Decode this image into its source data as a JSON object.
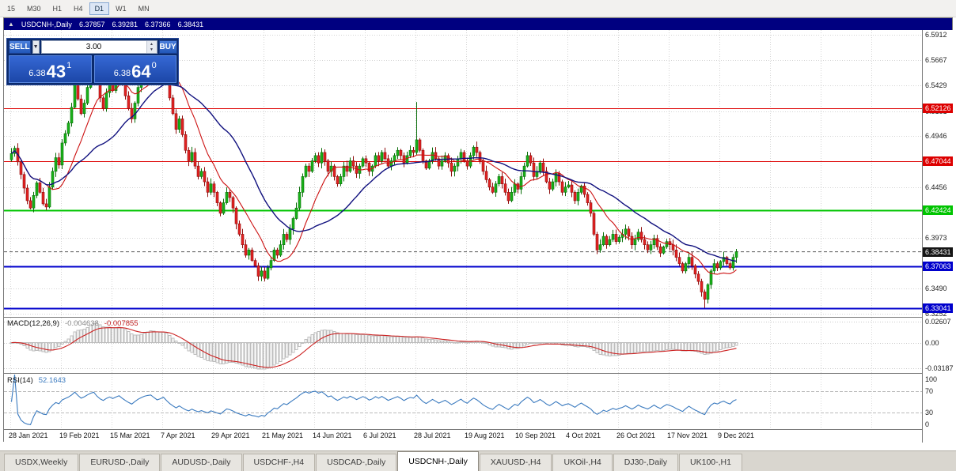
{
  "toolbar": {
    "timeframes": [
      "15",
      "M30",
      "H1",
      "H4",
      "D1",
      "W1",
      "MN"
    ],
    "active": "D1"
  },
  "chart_header": {
    "icon": "▲",
    "symbol": "USDCNH-,Daily",
    "ohlc": [
      "6.37857",
      "6.39281",
      "6.37366",
      "6.38431"
    ]
  },
  "trade_panel": {
    "sell_button": "SELL",
    "buy_button": "BUY",
    "volume": "3.00",
    "sell_quote": {
      "prefix": "6.38",
      "big": "43",
      "sup": "1"
    },
    "buy_quote": {
      "prefix": "6.38",
      "big": "64",
      "sup": "0"
    }
  },
  "macd_panel": {
    "name": "MACD(12,26,9)",
    "value_main": "-0.004638",
    "value_signal": "-0.007855"
  },
  "rsi_panel": {
    "name": "RSI(14)",
    "value": "52.1643"
  },
  "tabs": {
    "items": [
      "USDX,Weekly",
      "EURUSD-,Daily",
      "AUDUSD-,Daily",
      "USDCHF-,H4",
      "USDCAD-,Daily",
      "USDCNH-,Daily",
      "XAUUSD-,H4",
      "UKOil-,H4",
      "DJ30-,Daily",
      "UK100-,H1"
    ],
    "active": "USDCNH-,Daily"
  },
  "chart_data": {
    "type": "candlestick",
    "title": "USDCNH- Daily",
    "grid": true,
    "x_labels": [
      "28 Jan 2021",
      "19 Feb 2021",
      "15 Mar 2021",
      "7 Apr 2021",
      "29 Apr 2021",
      "21 May 2021",
      "14 Jun 2021",
      "6 Jul 2021",
      "28 Jul 2021",
      "19 Aug 2021",
      "10 Sep 2021",
      "4 Oct 2021",
      "26 Oct 2021",
      "17 Nov 2021",
      "9 Dec 2021"
    ],
    "label_every": 16,
    "first_open": 6.472,
    "closes": [
      6.478,
      6.483,
      6.47,
      6.458,
      6.445,
      6.433,
      6.426,
      6.438,
      6.45,
      6.441,
      6.43,
      6.427,
      6.446,
      6.461,
      6.474,
      6.467,
      6.488,
      6.497,
      6.507,
      6.522,
      6.546,
      6.53,
      6.516,
      6.526,
      6.541,
      6.556,
      6.566,
      6.546,
      6.531,
      6.521,
      6.536,
      6.547,
      6.538,
      6.549,
      6.559,
      6.546,
      6.533,
      6.521,
      6.511,
      6.526,
      6.541,
      6.553,
      6.563,
      6.569,
      6.573,
      6.561,
      6.549,
      6.556,
      6.566,
      6.549,
      6.531,
      6.516,
      6.501,
      6.511,
      6.496,
      6.481,
      6.471,
      6.479,
      6.466,
      6.456,
      6.461,
      6.451,
      6.441,
      6.449,
      6.441,
      6.431,
      6.421,
      6.431,
      6.441,
      6.436,
      6.426,
      6.411,
      6.401,
      6.391,
      6.381,
      6.386,
      6.376,
      6.371,
      6.361,
      6.366,
      6.359,
      6.369,
      6.376,
      6.386,
      6.381,
      6.391,
      6.401,
      6.396,
      6.406,
      6.416,
      6.426,
      6.441,
      6.456,
      6.466,
      6.461,
      6.471,
      6.476,
      6.469,
      6.479,
      6.471,
      6.461,
      6.466,
      6.456,
      6.449,
      6.456,
      6.466,
      6.461,
      6.471,
      6.466,
      6.459,
      6.466,
      6.473,
      6.469,
      6.461,
      6.466,
      6.476,
      6.471,
      6.479,
      6.473,
      6.466,
      6.471,
      6.476,
      6.481,
      6.476,
      6.469,
      6.476,
      6.481,
      6.479,
      6.491,
      6.481,
      6.471,
      6.464,
      6.471,
      6.479,
      6.473,
      6.466,
      6.471,
      6.476,
      6.469,
      6.461,
      6.466,
      6.473,
      6.479,
      6.471,
      6.466,
      6.476,
      6.484,
      6.479,
      6.471,
      6.461,
      6.453,
      6.446,
      6.441,
      6.449,
      6.456,
      6.449,
      6.441,
      6.433,
      6.441,
      6.449,
      6.444,
      6.456,
      6.466,
      6.476,
      6.469,
      6.456,
      6.461,
      6.469,
      6.461,
      6.451,
      6.444,
      6.451,
      6.459,
      6.451,
      6.441,
      6.446,
      6.448,
      6.441,
      6.433,
      6.441,
      6.447,
      6.439,
      6.431,
      6.421,
      6.401,
      6.386,
      6.391,
      6.399,
      6.391,
      6.396,
      6.401,
      6.394,
      6.398,
      6.401,
      6.406,
      6.399,
      6.391,
      6.396,
      6.403,
      6.396,
      6.391,
      6.386,
      6.391,
      6.397,
      6.389,
      6.383,
      6.389,
      6.394,
      6.391,
      6.386,
      6.379,
      6.373,
      6.366,
      6.373,
      6.379,
      6.371,
      6.363,
      6.356,
      6.346,
      6.339,
      6.353,
      6.366,
      6.373,
      6.369,
      6.375,
      6.379,
      6.373,
      6.369,
      6.379,
      6.3843
    ],
    "wick_overrides": {
      "44": {
        "high": 6.578
      },
      "128": {
        "high": 6.527
      },
      "219": {
        "low": 6.3308
      }
    },
    "y_axis": {
      "min": 6.3222,
      "max": 6.5957,
      "ticks": [
        "6.5912",
        "6.5667",
        "6.5429",
        "6.5181",
        "6.4946",
        "6.4456",
        "6.3973",
        "6.3490",
        "6.3252"
      ]
    },
    "levels": [
      {
        "value": 6.52126,
        "label": "6.52126",
        "color": "#dd0000",
        "width": 1
      },
      {
        "value": 6.47044,
        "label": "6.47044",
        "color": "#dd0000",
        "width": 1
      },
      {
        "value": 6.42424,
        "label": "6.42424",
        "color": "#00c400",
        "width": 2
      },
      {
        "value": 6.37063,
        "label": "6.37063",
        "color": "#0000cc",
        "width": 2
      },
      {
        "value": 6.33041,
        "label": "6.33041",
        "color": "#0000cc",
        "width": 2
      }
    ],
    "current_price": {
      "value": 6.38431,
      "label": "6.38431",
      "color": "#151515"
    },
    "candle_colors": {
      "up_fill": "#19b219",
      "up_stroke": "#0a6e0a",
      "down_fill": "#e32222",
      "down_stroke": "#8f0e0e"
    },
    "moving_averages": [
      {
        "name": "ma-fast",
        "period": 12,
        "color": "#cc1111"
      },
      {
        "name": "ma-slow",
        "period": 30,
        "color": "#10107e"
      }
    ],
    "macd": {
      "fast": 12,
      "slow": 26,
      "signal": 9,
      "axis_ticks": [
        "0.02607",
        "0.00",
        "-0.03187"
      ],
      "histogram_color": "#bdbdbd",
      "signal_color": "#cc2222"
    },
    "rsi": {
      "period": 14,
      "levels": [
        70,
        30
      ],
      "axis_ticks": [
        "100",
        "70",
        "30",
        "0"
      ],
      "line_color": "#3a7abf"
    }
  }
}
